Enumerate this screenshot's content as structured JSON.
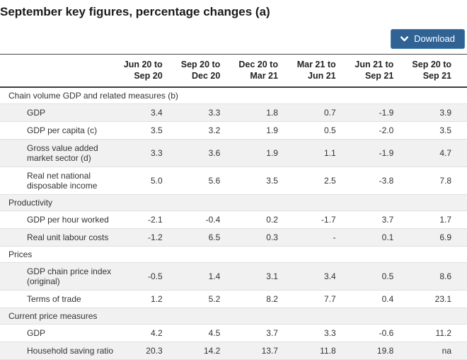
{
  "page": {
    "title": "September key figures, percentage changes (a)"
  },
  "toolbar": {
    "download_label": "Download"
  },
  "colors": {
    "accent_blue": "#306294",
    "row_shade": "#f1f1f1",
    "header_rule": "#3c3c3c",
    "row_rule": "#e0e0e0"
  },
  "table": {
    "columns": [
      {
        "line1": "Jun 20 to",
        "line2": "Sep 20"
      },
      {
        "line1": "Sep 20 to",
        "line2": "Dec 20"
      },
      {
        "line1": "Dec 20 to",
        "line2": "Mar 21"
      },
      {
        "line1": "Mar 21 to",
        "line2": "Jun 21"
      },
      {
        "line1": "Jun 21 to",
        "line2": "Sep 21"
      },
      {
        "line1": "Sep 20 to",
        "line2": "Sep 21"
      }
    ],
    "sections": [
      {
        "heading": "Chain volume GDP and related measures (b)",
        "heading_shaded": false,
        "rows": [
          {
            "label": "GDP",
            "shaded": true,
            "values": [
              "3.4",
              "3.3",
              "1.8",
              "0.7",
              "-1.9",
              "3.9"
            ]
          },
          {
            "label": "GDP per capita (c)",
            "shaded": false,
            "values": [
              "3.5",
              "3.2",
              "1.9",
              "0.5",
              "-2.0",
              "3.5"
            ]
          },
          {
            "label": "Gross value added market sector (d)",
            "shaded": true,
            "values": [
              "3.3",
              "3.6",
              "1.9",
              "1.1",
              "-1.9",
              "4.7"
            ]
          },
          {
            "label": "Real net national disposable income",
            "shaded": false,
            "values": [
              "5.0",
              "5.6",
              "3.5",
              "2.5",
              "-3.8",
              "7.8"
            ]
          }
        ]
      },
      {
        "heading": "Productivity",
        "heading_shaded": true,
        "rows": [
          {
            "label": "GDP per hour worked",
            "shaded": false,
            "values": [
              "-2.1",
              "-0.4",
              "0.2",
              "-1.7",
              "3.7",
              "1.7"
            ]
          },
          {
            "label": "Real unit labour costs",
            "shaded": true,
            "values": [
              "-1.2",
              "6.5",
              "0.3",
              "-",
              "0.1",
              "6.9"
            ]
          }
        ]
      },
      {
        "heading": "Prices",
        "heading_shaded": false,
        "rows": [
          {
            "label": "GDP chain price index (original)",
            "shaded": true,
            "values": [
              "-0.5",
              "1.4",
              "3.1",
              "3.4",
              "0.5",
              "8.6"
            ]
          },
          {
            "label": "Terms of trade",
            "shaded": false,
            "values": [
              "1.2",
              "5.2",
              "8.2",
              "7.7",
              "0.4",
              "23.1"
            ]
          }
        ]
      },
      {
        "heading": "Current price measures",
        "heading_shaded": true,
        "rows": [
          {
            "label": "GDP",
            "shaded": false,
            "values": [
              "4.2",
              "4.5",
              "3.7",
              "3.3",
              "-0.6",
              "11.2"
            ]
          },
          {
            "label": "Household saving ratio",
            "shaded": true,
            "values": [
              "20.3",
              "14.2",
              "13.7",
              "11.8",
              "19.8",
              "na"
            ]
          }
        ]
      }
    ]
  }
}
